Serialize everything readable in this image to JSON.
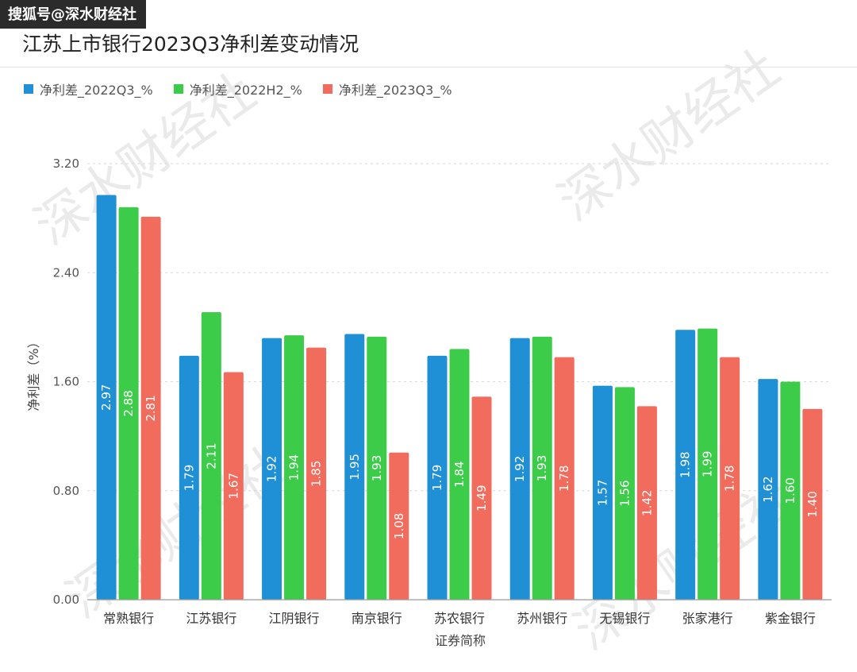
{
  "watermark": {
    "source": "搜狐号@深水财经社",
    "stamp": "深水财经社"
  },
  "chart_data": {
    "type": "bar",
    "title": "江苏上市银行2023Q3净利差变动情况",
    "xlabel": "证券简称",
    "ylabel": "净利差（%）",
    "ylim": [
      0,
      3.2
    ],
    "yticks": [
      "0.00",
      "0.80",
      "1.60",
      "2.40",
      "3.20"
    ],
    "grid": true,
    "legend_position": "top-left",
    "categories": [
      "常熟银行",
      "江苏银行",
      "江阴银行",
      "南京银行",
      "苏农银行",
      "苏州银行",
      "无锡银行",
      "张家港行",
      "紫金银行"
    ],
    "series": [
      {
        "name": "净利差_2022Q3_%",
        "color": "#1f8fd6",
        "values": [
          2.97,
          1.79,
          1.92,
          1.95,
          1.79,
          1.92,
          1.57,
          1.98,
          1.62
        ],
        "labels": [
          "2.97",
          "1.79",
          "1.92",
          "1.95",
          "1.79",
          "1.92",
          "1.57",
          "1.98",
          "1.62"
        ]
      },
      {
        "name": "净利差_2022H2_%",
        "color": "#3dcc4a",
        "values": [
          2.88,
          2.11,
          1.94,
          1.93,
          1.84,
          1.93,
          1.56,
          1.99,
          1.6
        ],
        "labels": [
          "2.88",
          "2.11",
          "1.94",
          "1.93",
          "1.84",
          "1.93",
          "1.56",
          "1.99",
          "1.60"
        ]
      },
      {
        "name": "净利差_2023Q3_%",
        "color": "#f26c5e",
        "values": [
          2.81,
          1.67,
          1.85,
          1.08,
          1.49,
          1.78,
          1.42,
          1.78,
          1.4
        ],
        "labels": [
          "2.81",
          "1.67",
          "1.85",
          "1.08",
          "1.49",
          "1.78",
          "1.42",
          "1.78",
          "1.40"
        ]
      }
    ]
  }
}
